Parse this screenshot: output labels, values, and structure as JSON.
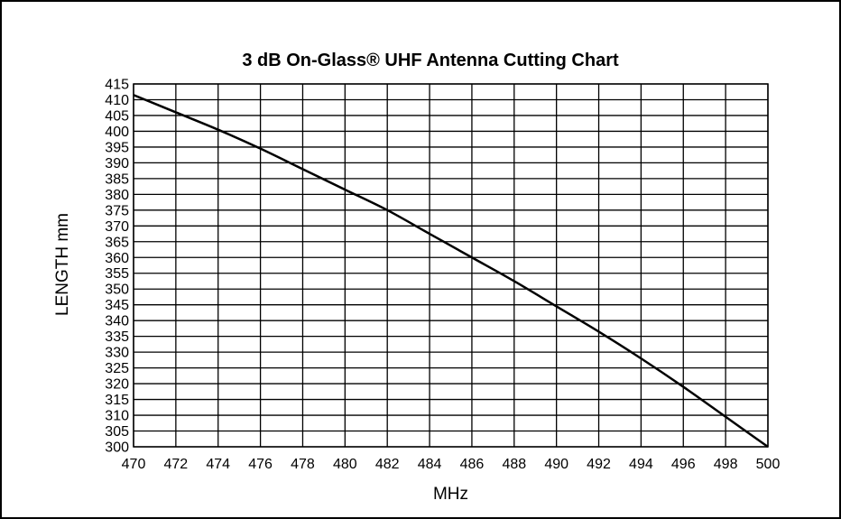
{
  "chart_data": {
    "type": "line",
    "title": "3 dB On-Glass® UHF Antenna Cutting Chart",
    "xlabel": "MHz",
    "ylabel": "LENGTH mm",
    "xlim": [
      470,
      500
    ],
    "ylim": [
      300,
      415
    ],
    "x_ticks": [
      470,
      472,
      474,
      476,
      478,
      480,
      482,
      484,
      486,
      488,
      490,
      492,
      494,
      496,
      498,
      500
    ],
    "y_ticks": [
      415,
      410,
      405,
      400,
      395,
      390,
      385,
      380,
      375,
      370,
      365,
      360,
      355,
      350,
      345,
      340,
      335,
      330,
      325,
      320,
      315,
      310,
      305,
      300
    ],
    "grid": true,
    "series": [
      {
        "color": "#000000",
        "x": [
          470,
          472,
          474,
          476,
          478,
          480,
          482,
          484,
          486,
          488,
          490,
          492,
          494,
          496,
          498,
          500
        ],
        "y": [
          411.5,
          406,
          400.5,
          394.5,
          388,
          381.5,
          375,
          367.5,
          360,
          352.5,
          344.5,
          336.5,
          328,
          319,
          309.5,
          300
        ]
      }
    ]
  }
}
